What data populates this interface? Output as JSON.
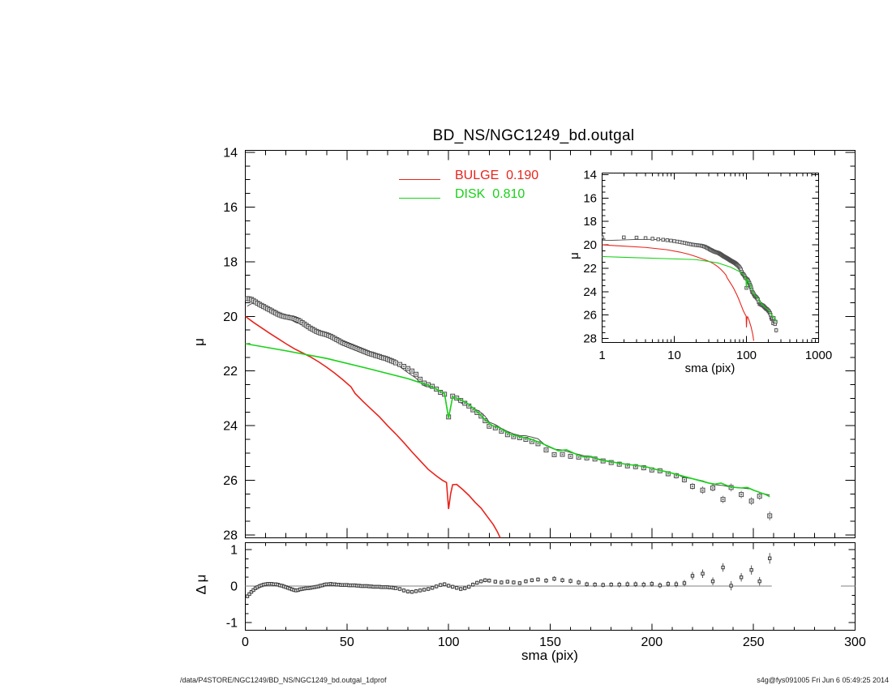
{
  "title": "BD_NS/NGC1249_bd.outgal",
  "footer": {
    "left": "/data/P4STORE/NGC1249/BD_NS/NGC1249_bd.outgal_1dprof",
    "right": "s4g@fys091005  Fri Jun  6 05:49:25 2014"
  },
  "legend": {
    "items": [
      {
        "name": "BULGE",
        "fraction": "0.190",
        "label": "BULGE  0.190",
        "color": "#e8241c"
      },
      {
        "name": "DISK",
        "fraction": "0.810",
        "label": "DISK  0.810",
        "color": "#19d119"
      }
    ]
  },
  "colors": {
    "frame": "#000000",
    "marker_stroke": "#4f4f4f",
    "marker_fill": "#ececec",
    "marker_dot": "#5a5a5a",
    "total_line": "#3c3c3c",
    "zero_line": "#9a9a9a",
    "error_bar": "#777777",
    "background": "#ffffff"
  },
  "chart_data": {
    "type": "scatter",
    "main": {
      "ylabel": "μ",
      "xlim": [
        0,
        300
      ],
      "ylim": [
        14,
        28
      ],
      "y_reversed": true,
      "yticks": [
        14,
        16,
        18,
        20,
        22,
        24,
        26,
        28
      ],
      "xticks": [
        0,
        50,
        100,
        150,
        200,
        250,
        300
      ],
      "x_tick_labels_shown": false,
      "x_minor_step": 10,
      "y_minor_step": 0.5,
      "grid": false
    },
    "residual": {
      "ylabel": "Δ μ",
      "xlabel": "sma (pix)",
      "xlim": [
        0,
        300
      ],
      "ylim": [
        -1.2,
        1.2
      ],
      "yticks": [
        1,
        0,
        -1
      ],
      "xticks": [
        0,
        50,
        100,
        150,
        200,
        250,
        300
      ],
      "x_minor_step": 10,
      "y_minor_step": 0.25,
      "zero_line_segments": [
        [
          0,
          259
        ],
        [
          293,
          300
        ]
      ]
    },
    "inset": {
      "xlabel": "sma (pix)",
      "ylabel": "μ",
      "xscale": "log",
      "xlim": [
        1,
        1000
      ],
      "ylim": [
        14,
        28
      ],
      "y_reversed": true,
      "xticks": [
        1,
        10,
        100,
        1000
      ],
      "yticks": [
        14,
        16,
        18,
        20,
        22,
        24,
        26,
        28
      ],
      "y_minor_step": 0.5
    },
    "series": [
      {
        "name": "BULGE",
        "color": "#e8241c",
        "fraction": 0.19,
        "points": [
          [
            0,
            20.0
          ],
          [
            4,
            20.22
          ],
          [
            8,
            20.42
          ],
          [
            12,
            20.62
          ],
          [
            16,
            20.81
          ],
          [
            20,
            21.0
          ],
          [
            24,
            21.18
          ],
          [
            28,
            21.33
          ],
          [
            32,
            21.48
          ],
          [
            36,
            21.66
          ],
          [
            40,
            21.86
          ],
          [
            44,
            22.08
          ],
          [
            48,
            22.32
          ],
          [
            52,
            22.58
          ],
          [
            54,
            22.82
          ],
          [
            58,
            23.12
          ],
          [
            62,
            23.4
          ],
          [
            66,
            23.68
          ],
          [
            70,
            24.0
          ],
          [
            74,
            24.3
          ],
          [
            78,
            24.62
          ],
          [
            82,
            24.96
          ],
          [
            86,
            25.28
          ],
          [
            90,
            25.6
          ],
          [
            94,
            25.84
          ],
          [
            97,
            26.0
          ],
          [
            99,
            26.08
          ],
          [
            100,
            27.05
          ],
          [
            101,
            26.5
          ],
          [
            102,
            26.16
          ],
          [
            104,
            26.15
          ],
          [
            107,
            26.34
          ],
          [
            110,
            26.55
          ],
          [
            113,
            26.8
          ],
          [
            116,
            27.02
          ],
          [
            119,
            27.32
          ],
          [
            122,
            27.62
          ],
          [
            124,
            27.88
          ],
          [
            126,
            28.2
          ]
        ]
      },
      {
        "name": "DISK",
        "color": "#19d119",
        "fraction": 0.81,
        "points": [
          [
            0,
            21.0
          ],
          [
            20,
            21.26
          ],
          [
            40,
            21.54
          ],
          [
            60,
            21.9
          ],
          [
            80,
            22.28
          ],
          [
            90,
            22.52
          ],
          [
            95,
            22.7
          ],
          [
            98,
            22.83
          ],
          [
            100,
            23.72
          ],
          [
            102,
            22.95
          ],
          [
            106,
            23.05
          ],
          [
            110,
            23.22
          ],
          [
            114,
            23.48
          ],
          [
            118,
            23.78
          ],
          [
            121,
            23.98
          ],
          [
            125,
            24.08
          ],
          [
            130,
            24.3
          ],
          [
            135,
            24.4
          ],
          [
            140,
            24.48
          ],
          [
            145,
            24.62
          ],
          [
            150,
            24.78
          ],
          [
            154,
            24.92
          ],
          [
            158,
            24.88
          ],
          [
            162,
            25.02
          ],
          [
            166,
            25.14
          ],
          [
            170,
            25.12
          ],
          [
            174,
            25.24
          ],
          [
            178,
            25.3
          ],
          [
            183,
            25.36
          ],
          [
            188,
            25.42
          ],
          [
            193,
            25.46
          ],
          [
            198,
            25.52
          ],
          [
            203,
            25.62
          ],
          [
            208,
            25.7
          ],
          [
            213,
            25.8
          ],
          [
            218,
            25.9
          ],
          [
            223,
            26.0
          ],
          [
            228,
            26.1
          ],
          [
            231,
            26.14
          ],
          [
            234,
            26.1
          ],
          [
            238,
            26.22
          ],
          [
            241,
            26.26
          ],
          [
            244,
            26.28
          ],
          [
            247,
            26.26
          ],
          [
            250,
            26.36
          ],
          [
            253,
            26.44
          ],
          [
            256,
            26.52
          ],
          [
            258,
            26.6
          ]
        ]
      }
    ],
    "profile_points_format": [
      "sma",
      "mu",
      "delta_mu",
      "err"
    ],
    "profile_points": [
      [
        1,
        19.35,
        -0.28,
        0.02
      ],
      [
        2,
        19.36,
        -0.22,
        0.02
      ],
      [
        3,
        19.38,
        -0.16,
        0.02
      ],
      [
        4,
        19.42,
        -0.11,
        0.02
      ],
      [
        5,
        19.47,
        -0.06,
        0.02
      ],
      [
        6,
        19.52,
        -0.03,
        0.02
      ],
      [
        7,
        19.56,
        0.0,
        0.02
      ],
      [
        8,
        19.6,
        0.02,
        0.02
      ],
      [
        9,
        19.64,
        0.04,
        0.02
      ],
      [
        10,
        19.68,
        0.05,
        0.02
      ],
      [
        11,
        19.72,
        0.06,
        0.02
      ],
      [
        12,
        19.76,
        0.06,
        0.02
      ],
      [
        13,
        19.8,
        0.06,
        0.02
      ],
      [
        14,
        19.84,
        0.05,
        0.02
      ],
      [
        15,
        19.88,
        0.05,
        0.02
      ],
      [
        16,
        19.92,
        0.04,
        0.02
      ],
      [
        17,
        19.95,
        0.02,
        0.02
      ],
      [
        18,
        19.98,
        0.01,
        0.02
      ],
      [
        19,
        20.0,
        -0.01,
        0.02
      ],
      [
        20,
        20.02,
        -0.03,
        0.02
      ],
      [
        21,
        20.03,
        -0.05,
        0.02
      ],
      [
        22,
        20.05,
        -0.07,
        0.02
      ],
      [
        23,
        20.06,
        -0.09,
        0.02
      ],
      [
        24,
        20.08,
        -0.11,
        0.02
      ],
      [
        25,
        20.11,
        -0.12,
        0.02
      ],
      [
        26,
        20.14,
        -0.11,
        0.02
      ],
      [
        27,
        20.18,
        -0.09,
        0.02
      ],
      [
        28,
        20.23,
        -0.08,
        0.02
      ],
      [
        29,
        20.28,
        -0.07,
        0.02
      ],
      [
        30,
        20.33,
        -0.06,
        0.02
      ],
      [
        31,
        20.38,
        -0.06,
        0.02
      ],
      [
        32,
        20.43,
        -0.05,
        0.02
      ],
      [
        33,
        20.47,
        -0.04,
        0.02
      ],
      [
        34,
        20.51,
        -0.03,
        0.02
      ],
      [
        35,
        20.55,
        -0.02,
        0.02
      ],
      [
        36,
        20.58,
        -0.01,
        0.02
      ],
      [
        37,
        20.61,
        0.01,
        0.02
      ],
      [
        38,
        20.63,
        0.02,
        0.02
      ],
      [
        39,
        20.65,
        0.04,
        0.02
      ],
      [
        40,
        20.67,
        0.05,
        0.02
      ],
      [
        41,
        20.7,
        0.05,
        0.02
      ],
      [
        42,
        20.73,
        0.06,
        0.02
      ],
      [
        43,
        20.77,
        0.05,
        0.02
      ],
      [
        44,
        20.81,
        0.05,
        0.02
      ],
      [
        45,
        20.85,
        0.04,
        0.02
      ],
      [
        46,
        20.89,
        0.04,
        0.02
      ],
      [
        47,
        20.93,
        0.03,
        0.02
      ],
      [
        48,
        20.97,
        0.03,
        0.02
      ],
      [
        49,
        21.0,
        0.03,
        0.02
      ],
      [
        50,
        21.03,
        0.03,
        0.02
      ],
      [
        51,
        21.06,
        0.02,
        0.02
      ],
      [
        52,
        21.09,
        0.02,
        0.02
      ],
      [
        53,
        21.12,
        0.02,
        0.02
      ],
      [
        54,
        21.15,
        0.02,
        0.02
      ],
      [
        55,
        21.18,
        0.01,
        0.02
      ],
      [
        56,
        21.21,
        0.01,
        0.02
      ],
      [
        57,
        21.24,
        0.0,
        0.02
      ],
      [
        58,
        21.27,
        0.0,
        0.02
      ],
      [
        59,
        21.3,
        0.0,
        0.02
      ],
      [
        60,
        21.33,
        0.0,
        0.02
      ],
      [
        61,
        21.36,
        -0.01,
        0.02
      ],
      [
        62,
        21.38,
        -0.01,
        0.02
      ],
      [
        63,
        21.4,
        -0.02,
        0.02
      ],
      [
        64,
        21.43,
        -0.02,
        0.02
      ],
      [
        65,
        21.45,
        -0.02,
        0.02
      ],
      [
        66,
        21.47,
        -0.02,
        0.02
      ],
      [
        67,
        21.5,
        -0.03,
        0.02
      ],
      [
        68,
        21.52,
        -0.03,
        0.02
      ],
      [
        69,
        21.54,
        -0.03,
        0.02
      ],
      [
        70,
        21.57,
        -0.03,
        0.02
      ],
      [
        71,
        21.6,
        -0.04,
        0.02
      ],
      [
        72,
        21.63,
        -0.04,
        0.02
      ],
      [
        73,
        21.66,
        -0.05,
        0.02
      ],
      [
        74,
        21.7,
        -0.06,
        0.02
      ],
      [
        76,
        21.76,
        -0.08,
        0.03
      ],
      [
        78,
        21.83,
        -0.12,
        0.03
      ],
      [
        80,
        21.91,
        -0.15,
        0.03
      ],
      [
        82,
        22.0,
        -0.16,
        0.03
      ],
      [
        84,
        22.12,
        -0.14,
        0.03
      ],
      [
        86,
        22.3,
        -0.12,
        0.03
      ],
      [
        88,
        22.44,
        -0.1,
        0.03
      ],
      [
        90,
        22.5,
        -0.08,
        0.03
      ],
      [
        92,
        22.56,
        -0.05,
        0.03
      ],
      [
        94,
        22.66,
        -0.01,
        0.03
      ],
      [
        96,
        22.78,
        0.03,
        0.03
      ],
      [
        98,
        22.85,
        0.05,
        0.03
      ],
      [
        100,
        23.68,
        0.01,
        0.03
      ],
      [
        102,
        22.92,
        -0.02,
        0.03
      ],
      [
        104,
        22.99,
        -0.05,
        0.03
      ],
      [
        106,
        23.08,
        -0.08,
        0.03
      ],
      [
        108,
        23.18,
        -0.06,
        0.03
      ],
      [
        110,
        23.28,
        -0.02,
        0.03
      ],
      [
        112,
        23.42,
        0.04,
        0.03
      ],
      [
        114,
        23.52,
        0.09,
        0.03
      ],
      [
        116,
        23.65,
        0.13,
        0.03
      ],
      [
        118,
        23.82,
        0.16,
        0.03
      ],
      [
        120,
        24.02,
        0.15,
        0.03
      ],
      [
        123,
        24.08,
        0.12,
        0.03
      ],
      [
        126,
        24.2,
        0.1,
        0.03
      ],
      [
        129,
        24.33,
        0.12,
        0.03
      ],
      [
        132,
        24.4,
        0.1,
        0.03
      ],
      [
        135,
        24.44,
        0.08,
        0.03
      ],
      [
        138,
        24.5,
        0.13,
        0.03
      ],
      [
        141,
        24.58,
        0.16,
        0.03
      ],
      [
        144,
        24.66,
        0.18,
        0.03
      ],
      [
        148,
        24.89,
        0.15,
        0.04
      ],
      [
        152,
        25.06,
        0.2,
        0.04
      ],
      [
        156,
        25.05,
        0.16,
        0.04
      ],
      [
        160,
        25.12,
        0.14,
        0.04
      ],
      [
        164,
        25.15,
        0.1,
        0.04
      ],
      [
        168,
        25.18,
        0.05,
        0.04
      ],
      [
        172,
        25.22,
        0.04,
        0.04
      ],
      [
        176,
        25.29,
        0.03,
        0.04
      ],
      [
        180,
        25.35,
        0.04,
        0.04
      ],
      [
        184,
        25.41,
        0.04,
        0.05
      ],
      [
        188,
        25.47,
        0.05,
        0.05
      ],
      [
        192,
        25.5,
        0.05,
        0.05
      ],
      [
        196,
        25.54,
        0.04,
        0.05
      ],
      [
        200,
        25.62,
        0.06,
        0.05
      ],
      [
        204,
        25.65,
        0.02,
        0.05
      ],
      [
        208,
        25.76,
        0.06,
        0.05
      ],
      [
        212,
        25.83,
        0.05,
        0.06
      ],
      [
        216,
        25.98,
        0.08,
        0.06
      ],
      [
        220,
        26.22,
        0.28,
        0.08
      ],
      [
        225,
        26.36,
        0.34,
        0.09
      ],
      [
        230,
        26.28,
        0.13,
        0.08
      ],
      [
        235,
        26.7,
        0.51,
        0.09
      ],
      [
        239,
        26.26,
        0.01,
        0.1
      ],
      [
        244,
        26.52,
        0.24,
        0.09
      ],
      [
        249,
        26.76,
        0.44,
        0.1
      ],
      [
        253,
        26.58,
        0.13,
        0.09
      ],
      [
        258,
        27.3,
        0.76,
        0.12
      ]
    ]
  }
}
